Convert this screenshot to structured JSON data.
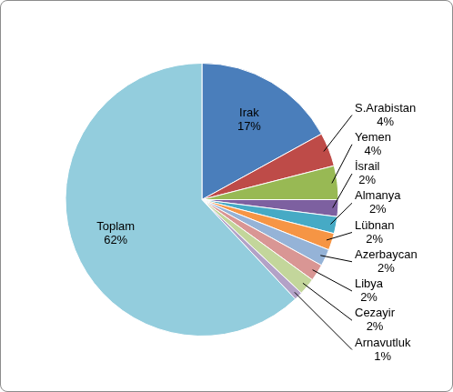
{
  "chart_data": {
    "type": "pie",
    "categories": [
      "Irak",
      "S.Arabistan",
      "Yemen",
      "İsrail",
      "Almanya",
      "Lübnan",
      "Azerbaycan",
      "Libya",
      "Cezayir",
      "Arnavutluk",
      "Toplam"
    ],
    "values": [
      17,
      4,
      4,
      2,
      2,
      2,
      2,
      2,
      2,
      1,
      62
    ],
    "value_labels": [
      "17%",
      "4%",
      "4%",
      "2%",
      "2%",
      "2%",
      "2%",
      "2%",
      "2%",
      "1%",
      "62%"
    ],
    "colors": [
      "#4a7ebb",
      "#be4b48",
      "#98b954",
      "#7d60a0",
      "#46aac5",
      "#f69544",
      "#95b3d7",
      "#d99694",
      "#c3d69b",
      "#b3a2c7",
      "#93cddd"
    ],
    "data_labels": true
  }
}
